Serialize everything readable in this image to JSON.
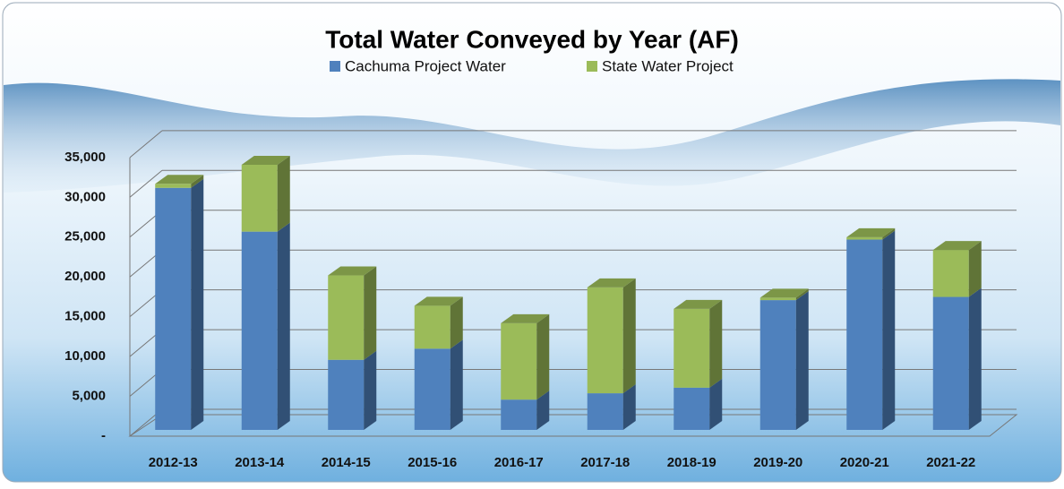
{
  "chart_data": {
    "type": "bar3d-stacked",
    "title": "Total Water Conveyed by Year (AF)",
    "categories": [
      "2012-13",
      "2013-14",
      "2014-15",
      "2015-16",
      "2016-17",
      "2017-18",
      "2018-19",
      "2019-20",
      "2020-21",
      "2021-22"
    ],
    "series": [
      {
        "name": "Cachuma Project Water",
        "color": "#4f81bd",
        "values": [
          30400,
          24900,
          8800,
          10200,
          3800,
          4600,
          5300,
          16300,
          23900,
          16700
        ]
      },
      {
        "name": "State Water Project",
        "color": "#9bbb59",
        "values": [
          500,
          8400,
          10600,
          5400,
          9600,
          13300,
          9900,
          300,
          300,
          5900
        ]
      }
    ],
    "ylim": [
      0,
      35000
    ],
    "yticks": [
      {
        "value": 0,
        "label": "-"
      },
      {
        "value": 5000,
        "label": "5,000"
      },
      {
        "value": 10000,
        "label": "10,000"
      },
      {
        "value": 15000,
        "label": "15,000"
      },
      {
        "value": 20000,
        "label": "20,000"
      },
      {
        "value": 25000,
        "label": "25,000"
      },
      {
        "value": 30000,
        "label": "30,000"
      },
      {
        "value": 35000,
        "label": "35,000"
      }
    ],
    "grid": true
  }
}
